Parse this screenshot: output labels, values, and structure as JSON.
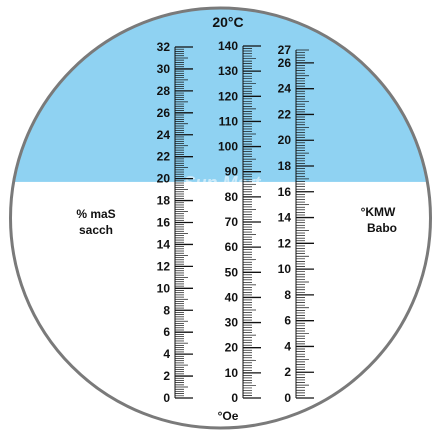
{
  "title": "20°C",
  "watermark": "Sun Mart",
  "colors": {
    "sky": "#8fd2f2",
    "field": "#ffffff",
    "ink": "#111111",
    "rim": "#7a7a7a"
  },
  "scale_left": {
    "label_line1": "% maS",
    "label_line2": "sacch",
    "min": 0,
    "max": 32,
    "major_step": 2,
    "minor_per_major": 10,
    "tick_labels": [
      "0",
      "2",
      "4",
      "6",
      "8",
      "10",
      "12",
      "14",
      "16",
      "18",
      "20",
      "22",
      "24",
      "26",
      "28",
      "30",
      "32"
    ]
  },
  "scale_middle": {
    "label": "°Oe",
    "min": 0,
    "max": 140,
    "major_step": 10,
    "minor_per_major": 10,
    "tick_labels": [
      "0",
      "10",
      "20",
      "30",
      "40",
      "50",
      "60",
      "70",
      "80",
      "90",
      "100",
      "110",
      "120",
      "130",
      "140"
    ]
  },
  "scale_right": {
    "label_line1": "°KMW",
    "label_line2": "Babo",
    "min": 0,
    "max": 27,
    "major_step": 2,
    "minor_per_major": 10,
    "tick_labels": [
      "0",
      "2",
      "4",
      "6",
      "8",
      "10",
      "12",
      "14",
      "16",
      "18",
      "20",
      "22",
      "24",
      "26",
      "27"
    ]
  },
  "shadow_boundary_value": 19.7
}
